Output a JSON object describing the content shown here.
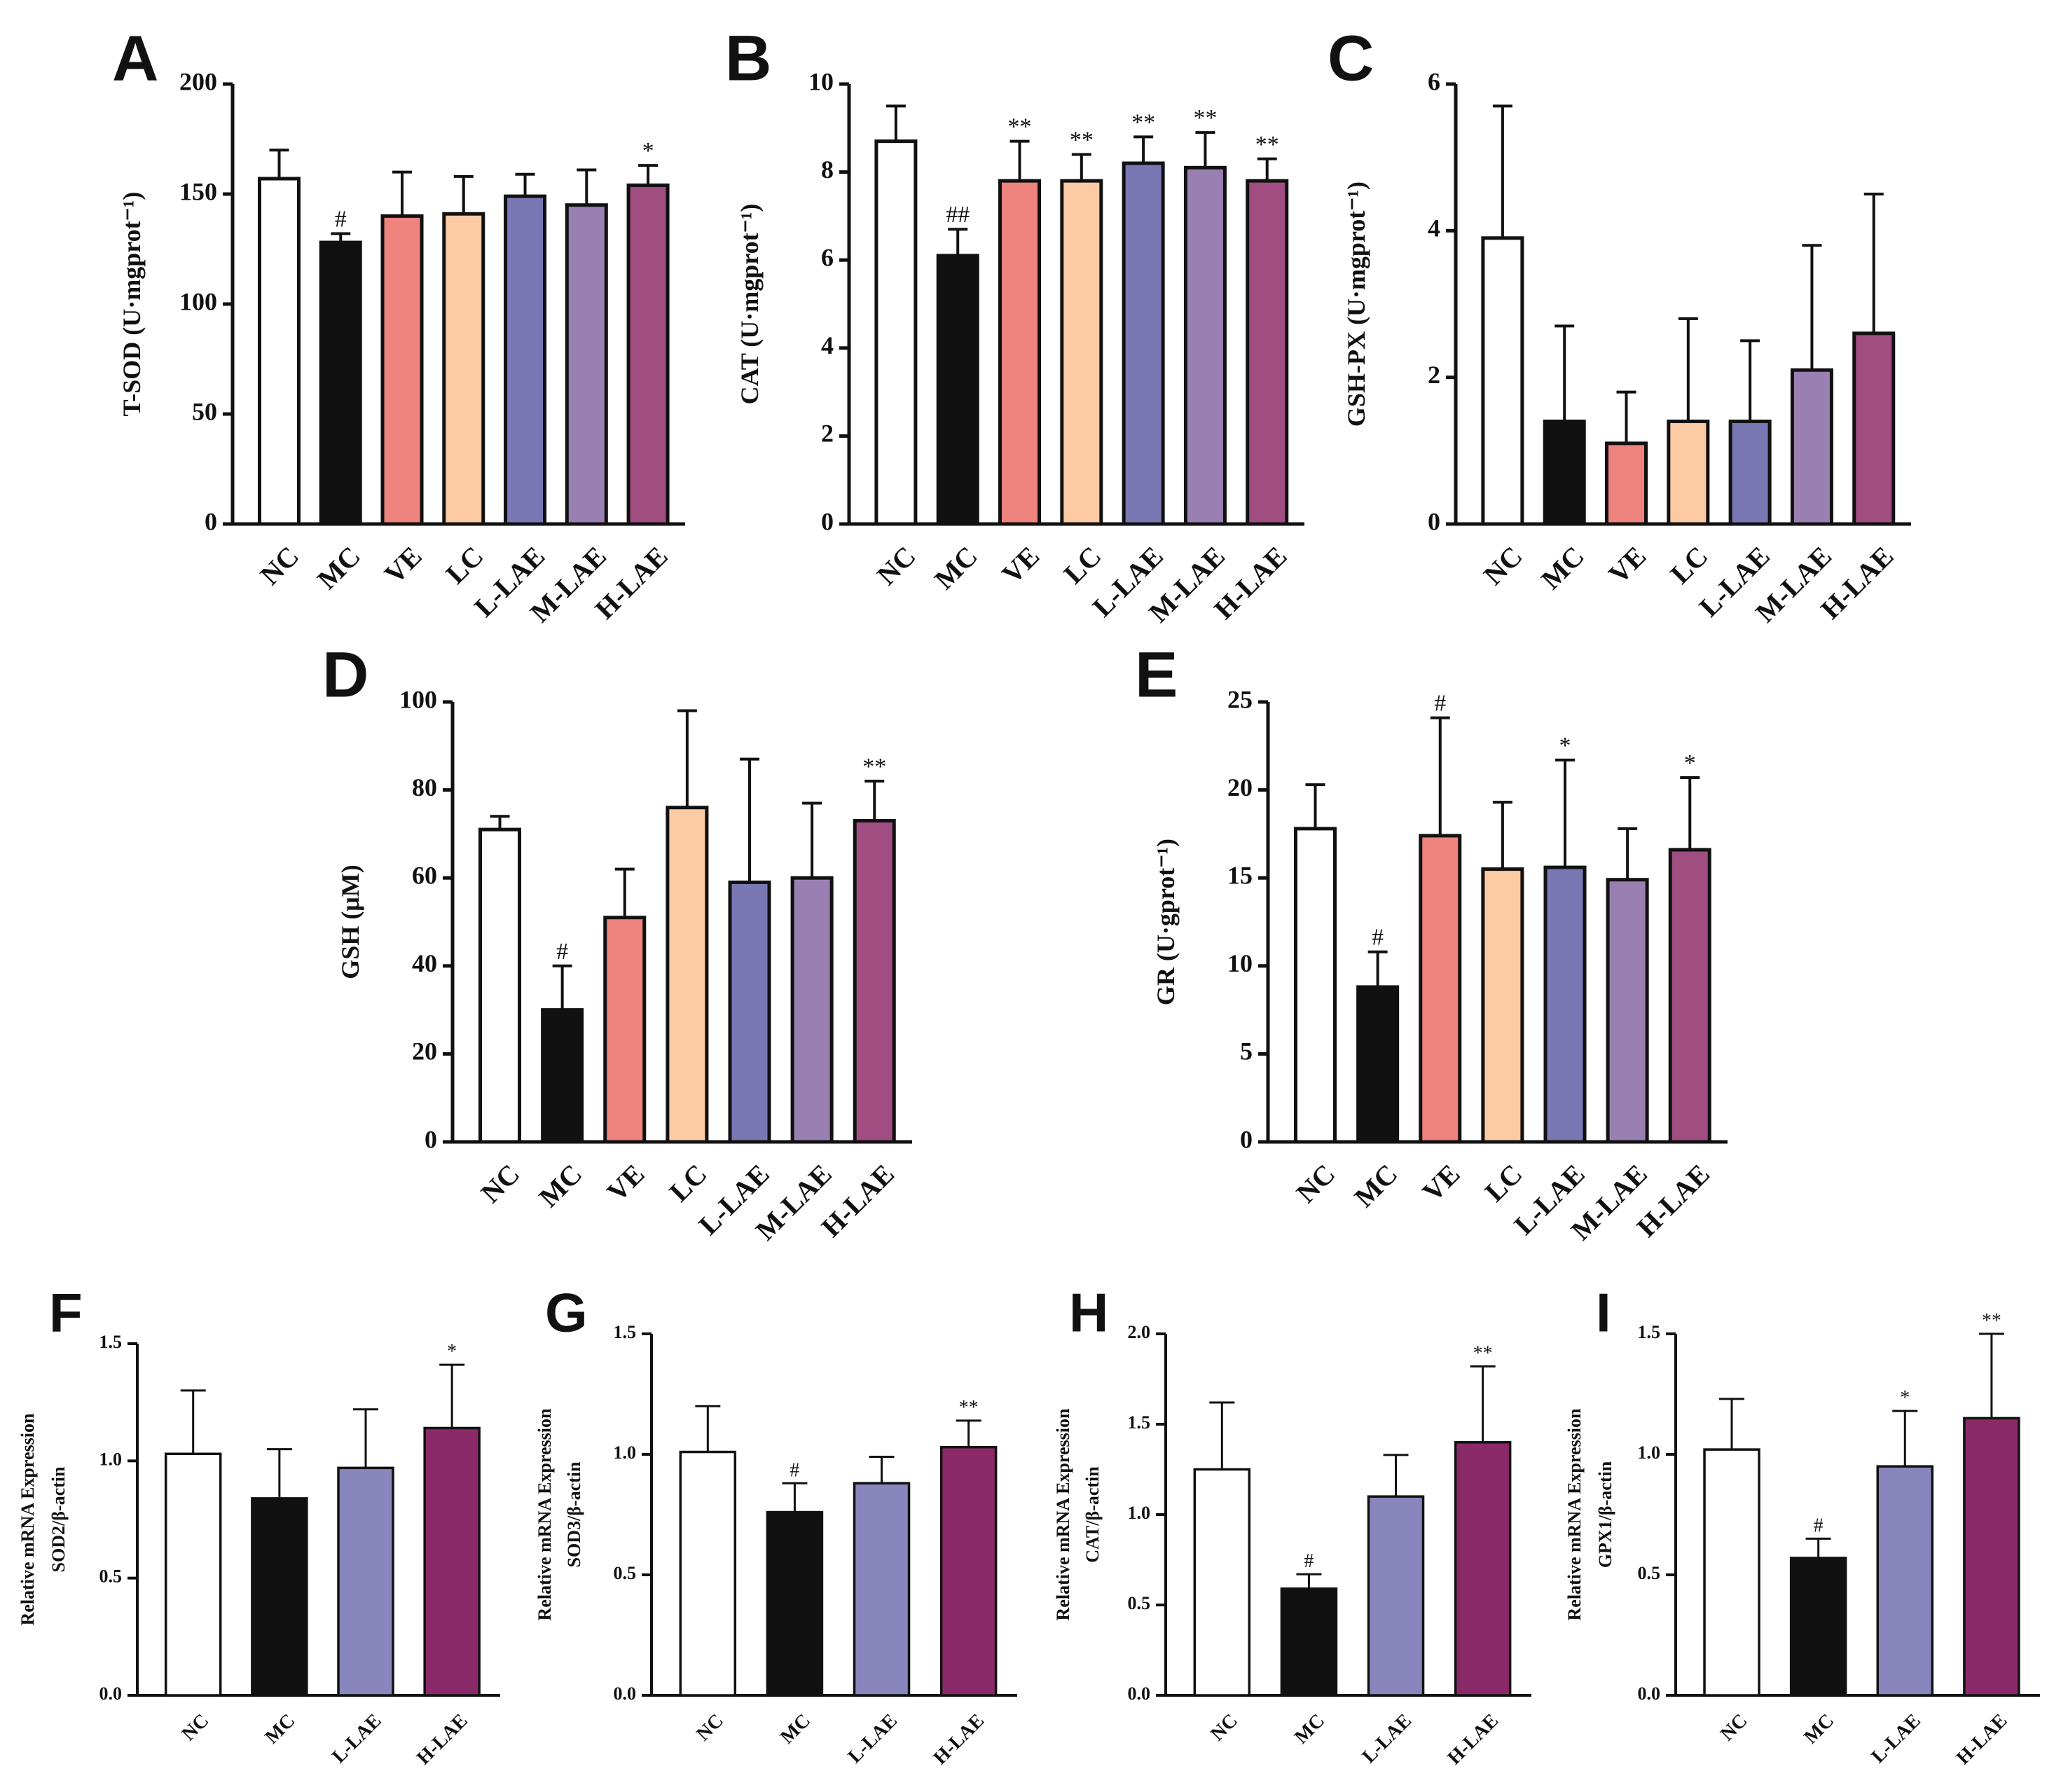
{
  "colors": {
    "NC": "#ffffff",
    "MC": "#111111",
    "VE": "#ef837d",
    "LC": "#fdcba3",
    "L-LAE": "#7a77b5",
    "M-LAE": "#9a7fb3",
    "H-LAE": "#a04d82",
    "L-LAE-mRNA": "#8886bd",
    "H-LAE-mRNA": "#8a2a68"
  },
  "chart_data": [
    {
      "panel": "A",
      "type": "bar",
      "ylabel": "T-SOD (U·mgprot⁻¹)",
      "ylim": [
        0,
        200
      ],
      "yticks": [
        "0",
        "50",
        "100",
        "150",
        "200"
      ],
      "categories": [
        "NC",
        "MC",
        "VE",
        "LC",
        "L-LAE",
        "M-LAE",
        "H-LAE"
      ],
      "values": [
        157,
        128,
        140,
        141,
        149,
        145,
        154
      ],
      "errors": [
        13,
        4,
        20,
        17,
        10,
        16,
        9
      ],
      "annotations": [
        "",
        "#",
        "",
        "",
        "",
        "",
        "*"
      ]
    },
    {
      "panel": "B",
      "type": "bar",
      "ylabel": "CAT (U·mgprot⁻¹)",
      "ylim": [
        0,
        10
      ],
      "yticks": [
        "0",
        "2",
        "4",
        "6",
        "8",
        "10"
      ],
      "categories": [
        "NC",
        "MC",
        "VE",
        "LC",
        "L-LAE",
        "M-LAE",
        "H-LAE"
      ],
      "values": [
        8.7,
        6.1,
        7.8,
        7.8,
        8.2,
        8.1,
        7.8
      ],
      "errors": [
        0.8,
        0.6,
        0.9,
        0.6,
        0.6,
        0.8,
        0.5
      ],
      "annotations": [
        "",
        "##",
        "**",
        "**",
        "**",
        "**",
        "**"
      ]
    },
    {
      "panel": "C",
      "type": "bar",
      "ylabel": "GSH-PX (U·mgprot⁻¹)",
      "ylim": [
        0,
        6
      ],
      "yticks": [
        "0",
        "2",
        "4",
        "6"
      ],
      "categories": [
        "NC",
        "MC",
        "VE",
        "LC",
        "L-LAE",
        "M-LAE",
        "H-LAE"
      ],
      "values": [
        3.9,
        1.4,
        1.1,
        1.4,
        1.4,
        2.1,
        2.6
      ],
      "errors": [
        1.8,
        1.3,
        0.7,
        1.4,
        1.1,
        1.7,
        1.9
      ],
      "annotations": [
        "",
        "",
        "",
        "",
        "",
        "",
        ""
      ]
    },
    {
      "panel": "D",
      "type": "bar",
      "ylabel": "GSH (μM)",
      "ylim": [
        0,
        100
      ],
      "yticks": [
        "0",
        "20",
        "40",
        "60",
        "80",
        "100"
      ],
      "categories": [
        "NC",
        "MC",
        "VE",
        "LC",
        "L-LAE",
        "M-LAE",
        "H-LAE"
      ],
      "values": [
        71,
        30,
        51,
        76,
        59,
        60,
        73
      ],
      "errors": [
        3,
        10,
        11,
        22,
        28,
        17,
        9
      ],
      "annotations": [
        "",
        "#",
        "",
        "",
        "",
        "",
        "**"
      ]
    },
    {
      "panel": "E",
      "type": "bar",
      "ylabel": "GR (U·gprot⁻¹)",
      "ylim": [
        0,
        25
      ],
      "yticks": [
        "0",
        "5",
        "10",
        "15",
        "20",
        "25"
      ],
      "categories": [
        "NC",
        "MC",
        "VE",
        "LC",
        "L-LAE",
        "M-LAE",
        "H-LAE"
      ],
      "values": [
        17.8,
        8.8,
        17.4,
        15.5,
        15.6,
        14.9,
        16.6
      ],
      "errors": [
        2.5,
        2.0,
        6.7,
        3.8,
        6.1,
        2.9,
        4.1
      ],
      "annotations": [
        "",
        "#",
        "#",
        "",
        "*",
        "",
        "*"
      ]
    },
    {
      "panel": "F",
      "type": "bar",
      "ylabel": [
        "Relative mRNA Expression",
        "SOD2/β-actin"
      ],
      "ylim": [
        0,
        1.5
      ],
      "yticks": [
        "0.0",
        "0.5",
        "1.0",
        "1.5"
      ],
      "categories": [
        "NC",
        "MC",
        "L-LAE",
        "H-LAE"
      ],
      "values": [
        1.03,
        0.84,
        0.97,
        1.14
      ],
      "errors": [
        0.27,
        0.21,
        0.25,
        0.27
      ],
      "annotations": [
        "",
        "",
        "",
        "*"
      ]
    },
    {
      "panel": "G",
      "type": "bar",
      "ylabel": [
        "Relative mRNA Expression",
        "SOD3/β-actin"
      ],
      "ylim": [
        0,
        1.5
      ],
      "yticks": [
        "0.0",
        "0.5",
        "1.0",
        "1.5"
      ],
      "categories": [
        "NC",
        "MC",
        "L-LAE",
        "H-LAE"
      ],
      "values": [
        1.01,
        0.76,
        0.88,
        1.03
      ],
      "errors": [
        0.19,
        0.12,
        0.11,
        0.11
      ],
      "annotations": [
        "",
        "#",
        "",
        "**"
      ]
    },
    {
      "panel": "H",
      "type": "bar",
      "ylabel": [
        "Relative mRNA Expression",
        "CAT/β-actin"
      ],
      "ylim": [
        0,
        2.0
      ],
      "yticks": [
        "0.0",
        "0.5",
        "1.0",
        "1.5",
        "2.0"
      ],
      "categories": [
        "NC",
        "MC",
        "L-LAE",
        "H-LAE"
      ],
      "values": [
        1.25,
        0.59,
        1.1,
        1.4
      ],
      "errors": [
        0.37,
        0.08,
        0.23,
        0.42
      ],
      "annotations": [
        "",
        "#",
        "",
        "**"
      ]
    },
    {
      "panel": "I",
      "type": "bar",
      "ylabel": [
        "Relative mRNA Expression",
        "GPX1/β-actin"
      ],
      "ylim": [
        0,
        1.5
      ],
      "yticks": [
        "0.0",
        "0.5",
        "1.0",
        "1.5"
      ],
      "categories": [
        "NC",
        "MC",
        "L-LAE",
        "H-LAE"
      ],
      "values": [
        1.02,
        0.57,
        0.95,
        1.15
      ],
      "errors": [
        0.21,
        0.08,
        0.23,
        0.35
      ],
      "annotations": [
        "",
        "#",
        "*",
        "**"
      ]
    }
  ]
}
